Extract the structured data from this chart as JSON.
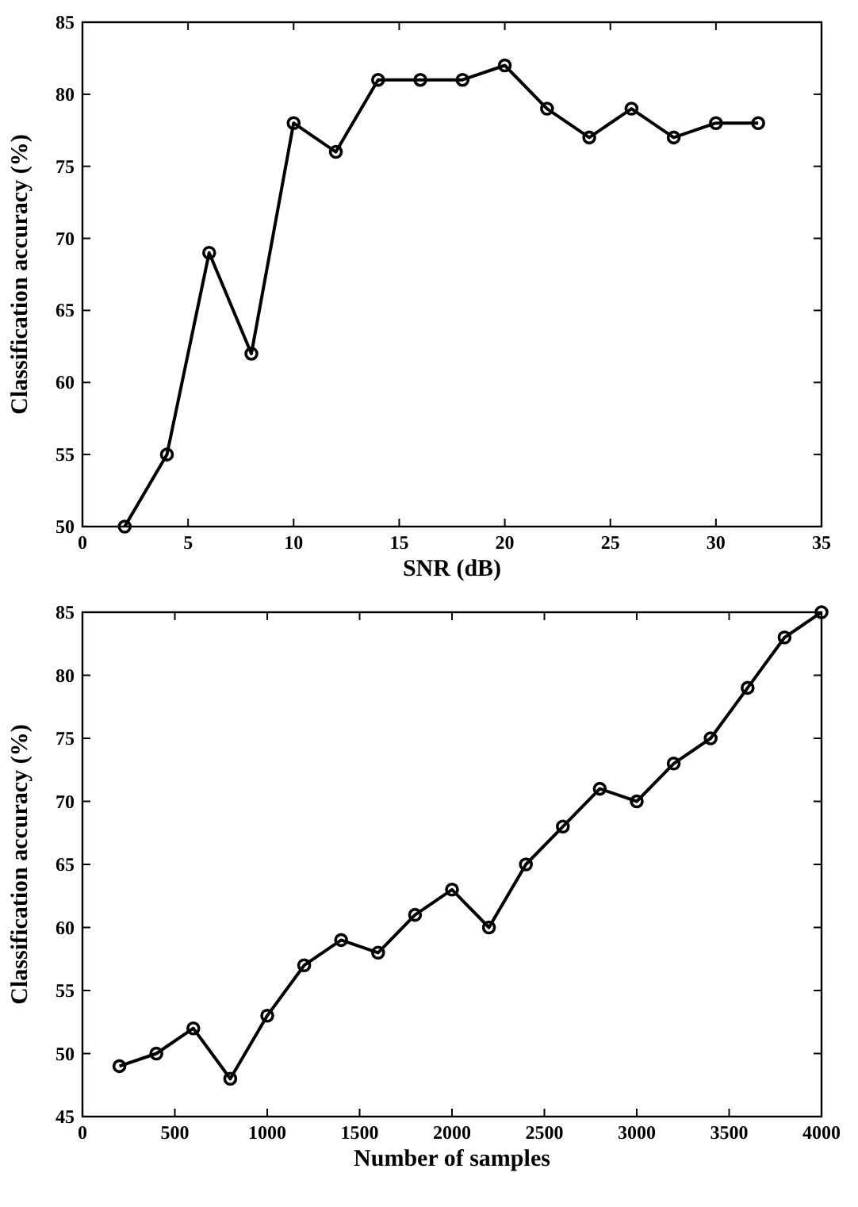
{
  "chart_data": [
    {
      "type": "line",
      "xlabel": "SNR (dB)",
      "ylabel": "Classification accuracy (%)",
      "x": [
        2,
        4,
        6,
        8,
        10,
        12,
        14,
        16,
        18,
        20,
        22,
        24,
        26,
        28,
        30,
        32
      ],
      "series": [
        {
          "color": "#000000",
          "values": [
            50,
            55,
            69,
            62,
            78,
            76,
            81,
            81,
            81,
            82,
            79,
            77,
            79,
            77,
            78,
            78
          ]
        }
      ],
      "xlim": [
        0,
        35
      ],
      "xticks": [
        0,
        5,
        10,
        15,
        20,
        25,
        30,
        35
      ],
      "ylim": [
        50,
        85
      ],
      "yticks": [
        50,
        55,
        60,
        65,
        70,
        75,
        80,
        85
      ],
      "marker": "circle",
      "line_style": "solid",
      "grid": false
    },
    {
      "type": "line",
      "xlabel": "Number of samples",
      "ylabel": "Classification accuracy (%)",
      "x": [
        200,
        400,
        600,
        800,
        1000,
        1200,
        1400,
        1600,
        1800,
        2000,
        2200,
        2400,
        2600,
        2800,
        3000,
        3200,
        3400,
        3600,
        3800,
        4000
      ],
      "series": [
        {
          "color": "#000000",
          "values": [
            49,
            50,
            52,
            48,
            53,
            57,
            59,
            58,
            61,
            63,
            60,
            65,
            68,
            71,
            70,
            73,
            75,
            79,
            83,
            85
          ]
        }
      ],
      "xlim": [
        0,
        4000
      ],
      "xticks": [
        0,
        500,
        1000,
        1500,
        2000,
        2500,
        3000,
        3500,
        4000
      ],
      "ylim": [
        45,
        85
      ],
      "yticks": [
        45,
        50,
        55,
        60,
        65,
        70,
        75,
        80,
        85
      ],
      "marker": "circle",
      "line_style": "solid",
      "grid": false
    }
  ]
}
